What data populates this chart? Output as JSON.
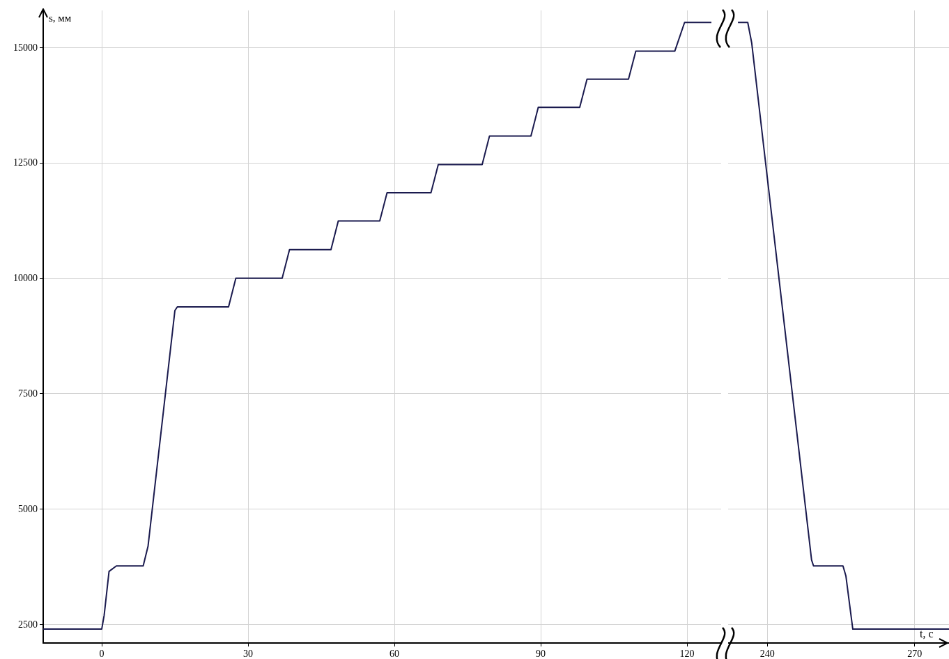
{
  "chart_data": [
    {
      "type": "line",
      "ylabel": "s, мм",
      "xlim": [
        -12,
        127
      ],
      "xticks": [
        0,
        30,
        60,
        90,
        120
      ],
      "ylim": [
        2100,
        15800
      ],
      "yticks": [
        2500,
        5000,
        7500,
        10000,
        12500,
        15000
      ],
      "grid": true,
      "series": [
        {
          "color": "#1a1a4e",
          "x": [
            -12,
            0,
            0.5,
            1.5,
            3,
            8.5,
            9.5,
            15,
            15.5,
            26,
            27.5,
            37,
            38.5,
            47,
            48.5,
            57,
            58.5,
            67.5,
            69,
            78,
            79.5,
            88,
            89.5,
            98,
            99.5,
            108,
            109.5,
            117.5,
            119.5,
            125
          ],
          "values": [
            2400,
            2400,
            2700,
            3650,
            3770,
            3770,
            4200,
            9300,
            9380,
            9380,
            10000,
            10000,
            10620,
            10620,
            11240,
            11240,
            11850,
            11850,
            12460,
            12460,
            13080,
            13080,
            13700,
            13700,
            14310,
            14310,
            14920,
            14920,
            15540,
            15540
          ]
        }
      ]
    },
    {
      "type": "line",
      "xlabel": "t, с",
      "xlim": [
        232,
        277
      ],
      "xticks": [
        240,
        270
      ],
      "ylim": [
        2100,
        15800
      ],
      "yticks": [
        2500,
        5000,
        7500,
        10000,
        12500,
        15000
      ],
      "grid": true,
      "tick_labels": "x",
      "series": [
        {
          "color": "#1a1a4e",
          "x": [
            234,
            236,
            236.8,
            249,
            249.4,
            255.4,
            256,
            257.4,
            277
          ],
          "values": [
            15540,
            15540,
            15100,
            3900,
            3770,
            3770,
            3550,
            2400,
            2400
          ]
        }
      ]
    }
  ]
}
